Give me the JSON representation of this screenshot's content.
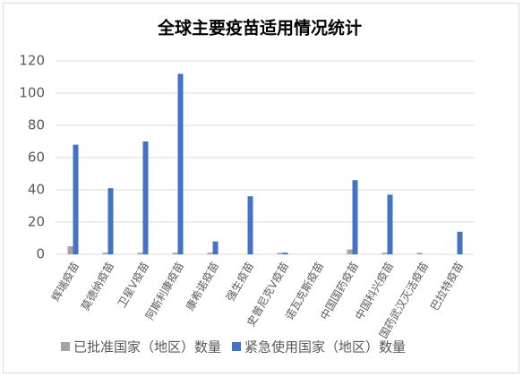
{
  "chart_data": {
    "type": "bar",
    "title": "全球主要疫苗适用情况统计",
    "categories": [
      "辉瑞疫苗",
      "莫德纳疫苗",
      "卫星V疫苗",
      "阿斯利康疫苗",
      "康希诺疫苗",
      "强生疫苗",
      "史普尼克V疫苗",
      "诺瓦克斯疫苗",
      "中国国药疫苗",
      "中国科兴疫苗",
      "国药武汉灭活疫苗",
      "巴拉特疫苗"
    ],
    "series": [
      {
        "name": "已批准国家（地区）数量",
        "color": "#a5a5a5",
        "values": [
          5,
          1,
          1,
          1,
          1,
          0,
          1,
          0,
          3,
          1,
          1,
          0
        ]
      },
      {
        "name": "紧急使用国家（地区）数量",
        "color": "#4472c4",
        "values": [
          68,
          41,
          70,
          112,
          8,
          36,
          1,
          0,
          46,
          37,
          0,
          14
        ]
      }
    ],
    "ylim": [
      0,
      120
    ],
    "yticks": [
      0,
      20,
      40,
      60,
      80,
      100,
      120
    ],
    "grid": true,
    "legend": "bottom"
  }
}
